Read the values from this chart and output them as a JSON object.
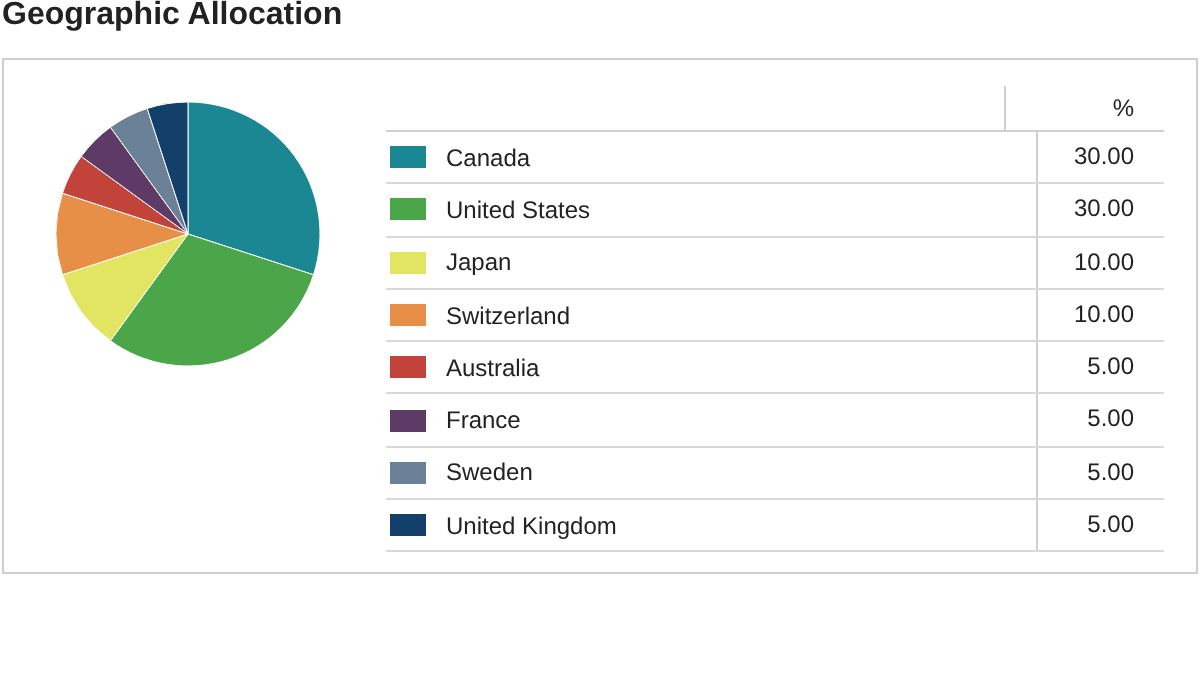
{
  "chart_data": {
    "type": "pie",
    "title": "Geographic Allocation",
    "legend_title": "%",
    "legend": "right",
    "categories": [
      "Canada",
      "United States",
      "Japan",
      "Switzerland",
      "Australia",
      "France",
      "Sweden",
      "United Kingdom"
    ],
    "values": [
      30,
      30,
      10,
      10,
      5,
      5,
      5,
      5
    ],
    "value_labels": [
      "30.00",
      "30.00",
      "10.00",
      "10.00",
      "5.00",
      "5.00",
      "5.00",
      "5.00"
    ],
    "colors": [
      "#1a8793",
      "#4ba64a",
      "#e2e561",
      "#e88f47",
      "#c2433a",
      "#5e3b66",
      "#6b8198",
      "#133f6b"
    ]
  }
}
